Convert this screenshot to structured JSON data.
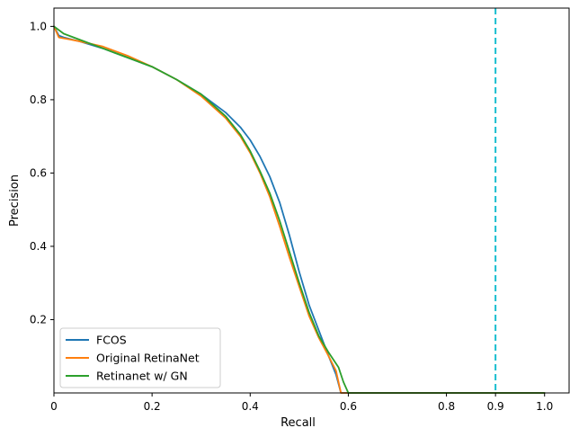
{
  "chart_data": {
    "type": "line",
    "xlabel": "Recall",
    "ylabel": "Precision",
    "xlim": [
      0,
      1.05
    ],
    "ylim": [
      0,
      1.05
    ],
    "xticks": [
      {
        "value": 0,
        "label": "0"
      },
      {
        "value": 0.2,
        "label": "0.2"
      },
      {
        "value": 0.4,
        "label": "0.4"
      },
      {
        "value": 0.6,
        "label": "0.6"
      },
      {
        "value": 0.8,
        "label": "0.8"
      },
      {
        "value": 0.9,
        "label": "0.9"
      },
      {
        "value": 1.0,
        "label": "1.0"
      }
    ],
    "yticks": [
      {
        "value": 0.2,
        "label": "0.2"
      },
      {
        "value": 0.4,
        "label": "0.4"
      },
      {
        "value": 0.6,
        "label": "0.6"
      },
      {
        "value": 0.8,
        "label": "0.8"
      },
      {
        "value": 1.0,
        "label": "1.0"
      }
    ],
    "grid": false,
    "legend_position": "lower-left",
    "reference_line": {
      "x": 0.9,
      "color": "#17becf",
      "style": "dashed"
    },
    "series": [
      {
        "name": "FCOS",
        "color": "#1f77b4",
        "points": [
          [
            0,
            1.0
          ],
          [
            0.01,
            0.975
          ],
          [
            0.02,
            0.97
          ],
          [
            0.05,
            0.96
          ],
          [
            0.1,
            0.94
          ],
          [
            0.15,
            0.915
          ],
          [
            0.2,
            0.89
          ],
          [
            0.25,
            0.855
          ],
          [
            0.3,
            0.815
          ],
          [
            0.35,
            0.765
          ],
          [
            0.38,
            0.725
          ],
          [
            0.4,
            0.69
          ],
          [
            0.42,
            0.645
          ],
          [
            0.44,
            0.59
          ],
          [
            0.46,
            0.52
          ],
          [
            0.48,
            0.43
          ],
          [
            0.5,
            0.33
          ],
          [
            0.52,
            0.24
          ],
          [
            0.54,
            0.17
          ],
          [
            0.56,
            0.1
          ],
          [
            0.575,
            0.05
          ],
          [
            0.585,
            0
          ],
          [
            1.0,
            0
          ]
        ]
      },
      {
        "name": "Original RetinaNet",
        "color": "#ff7f0e",
        "points": [
          [
            0,
            1.0
          ],
          [
            0.01,
            0.97
          ],
          [
            0.03,
            0.965
          ],
          [
            0.05,
            0.96
          ],
          [
            0.1,
            0.945
          ],
          [
            0.15,
            0.92
          ],
          [
            0.2,
            0.89
          ],
          [
            0.25,
            0.855
          ],
          [
            0.3,
            0.81
          ],
          [
            0.35,
            0.75
          ],
          [
            0.38,
            0.7
          ],
          [
            0.4,
            0.655
          ],
          [
            0.42,
            0.6
          ],
          [
            0.44,
            0.535
          ],
          [
            0.46,
            0.455
          ],
          [
            0.48,
            0.37
          ],
          [
            0.5,
            0.29
          ],
          [
            0.52,
            0.21
          ],
          [
            0.54,
            0.15
          ],
          [
            0.56,
            0.1
          ],
          [
            0.575,
            0.06
          ],
          [
            0.585,
            0
          ],
          [
            1.0,
            0
          ]
        ]
      },
      {
        "name": "Retinanet w/ GN",
        "color": "#2ca02c",
        "points": [
          [
            0,
            1.0
          ],
          [
            0.02,
            0.98
          ],
          [
            0.05,
            0.965
          ],
          [
            0.1,
            0.94
          ],
          [
            0.15,
            0.915
          ],
          [
            0.2,
            0.89
          ],
          [
            0.25,
            0.855
          ],
          [
            0.3,
            0.815
          ],
          [
            0.35,
            0.755
          ],
          [
            0.38,
            0.705
          ],
          [
            0.4,
            0.66
          ],
          [
            0.42,
            0.605
          ],
          [
            0.44,
            0.545
          ],
          [
            0.46,
            0.47
          ],
          [
            0.48,
            0.385
          ],
          [
            0.5,
            0.3
          ],
          [
            0.52,
            0.22
          ],
          [
            0.54,
            0.155
          ],
          [
            0.56,
            0.11
          ],
          [
            0.58,
            0.07
          ],
          [
            0.59,
            0.03
          ],
          [
            0.6,
            0
          ],
          [
            1.0,
            0
          ]
        ]
      }
    ]
  }
}
